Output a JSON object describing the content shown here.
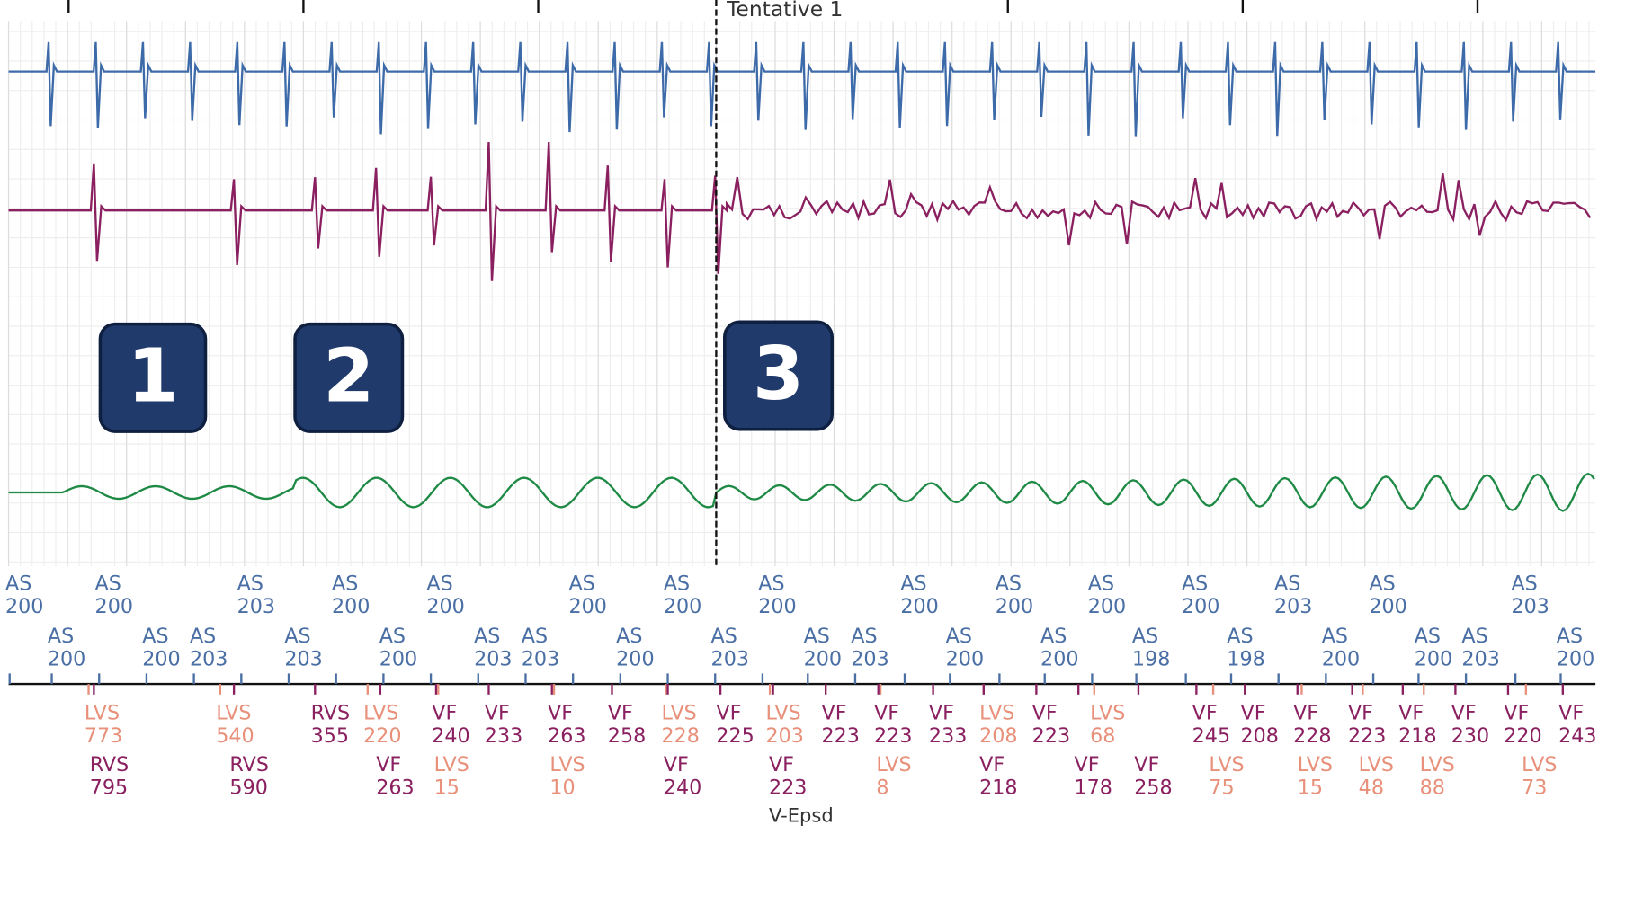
{
  "tracing_label": "Tentative 1",
  "badges": [
    "1",
    "2",
    "3"
  ],
  "atrial_top": [
    {
      "label": "AS",
      "value": 200
    },
    {
      "label": "AS",
      "value": 200
    },
    {
      "label": "AS",
      "value": 203
    },
    {
      "label": "AS",
      "value": 200
    },
    {
      "label": "AS",
      "value": 200
    },
    {
      "label": "AS",
      "value": 200
    },
    {
      "label": "AS",
      "value": 200
    },
    {
      "label": "AS",
      "value": 200
    },
    {
      "label": "AS",
      "value": 200
    },
    {
      "label": "AS",
      "value": 200
    },
    {
      "label": "AS",
      "value": 200
    },
    {
      "label": "AS",
      "value": 200
    },
    {
      "label": "AS",
      "value": 203
    },
    {
      "label": "AS",
      "value": 200
    },
    {
      "label": "AS",
      "value": 203
    }
  ],
  "atrial_bottom": [
    {
      "label": "AS",
      "value": 200
    },
    {
      "label": "AS",
      "value": 200
    },
    {
      "label": "AS",
      "value": 203
    },
    {
      "label": "AS",
      "value": 203
    },
    {
      "label": "AS",
      "value": 200
    },
    {
      "label": "AS",
      "value": 203
    },
    {
      "label": "AS",
      "value": 203
    },
    {
      "label": "AS",
      "value": 200
    },
    {
      "label": "AS",
      "value": 203
    },
    {
      "label": "AS",
      "value": 200
    },
    {
      "label": "AS",
      "value": 203
    },
    {
      "label": "AS",
      "value": 200
    },
    {
      "label": "AS",
      "value": 200
    },
    {
      "label": "AS",
      "value": 198
    },
    {
      "label": "AS",
      "value": 198
    },
    {
      "label": "AS",
      "value": 200
    },
    {
      "label": "AS",
      "value": 200
    },
    {
      "label": "AS",
      "value": 203
    },
    {
      "label": "AS",
      "value": 200
    }
  ],
  "ventricular_top": [
    {
      "label": "LVS",
      "value": 773
    },
    {
      "label": "LVS",
      "value": 540
    },
    {
      "label": "RVS",
      "value": 355
    },
    {
      "label": "LVS",
      "value": 220
    },
    {
      "label": "VF",
      "value": 240
    },
    {
      "label": "VF",
      "value": 233
    },
    {
      "label": "VF",
      "value": 263
    },
    {
      "label": "VF",
      "value": 258
    },
    {
      "label": "LVS",
      "value": 228
    },
    {
      "label": "VF",
      "value": 225
    },
    {
      "label": "LVS",
      "value": 203
    },
    {
      "label": "VF",
      "value": 223
    },
    {
      "label": "VF",
      "value": 223
    },
    {
      "label": "VF",
      "value": 233
    },
    {
      "label": "LVS",
      "value": 208
    },
    {
      "label": "VF",
      "value": 223
    },
    {
      "label": "LVS",
      "value": 68
    },
    {
      "label": "VF",
      "value": 245
    },
    {
      "label": "VF",
      "value": 208
    },
    {
      "label": "VF",
      "value": 228
    },
    {
      "label": "VF",
      "value": 223
    },
    {
      "label": "VF",
      "value": 218
    },
    {
      "label": "VF",
      "value": 230
    },
    {
      "label": "VF",
      "value": 220
    },
    {
      "label": "VF",
      "value": 243
    }
  ],
  "ventricular_bottom": [
    {
      "label": "RVS",
      "value": 795
    },
    {
      "label": "RVS",
      "value": 590
    },
    {
      "label": "VF",
      "value": 263
    },
    {
      "label": "LVS",
      "value": 15
    },
    {
      "label": "LVS",
      "value": 10
    },
    {
      "label": "VF",
      "value": 240
    },
    {
      "label": "VF",
      "value": 223
    },
    {
      "label": "LVS",
      "value": 8
    },
    {
      "label": "VF",
      "value": 218
    },
    {
      "label": "VF",
      "value": 178
    },
    {
      "label": "VF",
      "value": 258
    },
    {
      "label": "LVS",
      "value": 75
    },
    {
      "label": "LVS",
      "value": 15
    },
    {
      "label": "LVS",
      "value": 48
    },
    {
      "label": "LVS",
      "value": 88
    },
    {
      "label": "LVS",
      "value": 73
    }
  ],
  "episode_label": "V-Epsd"
}
